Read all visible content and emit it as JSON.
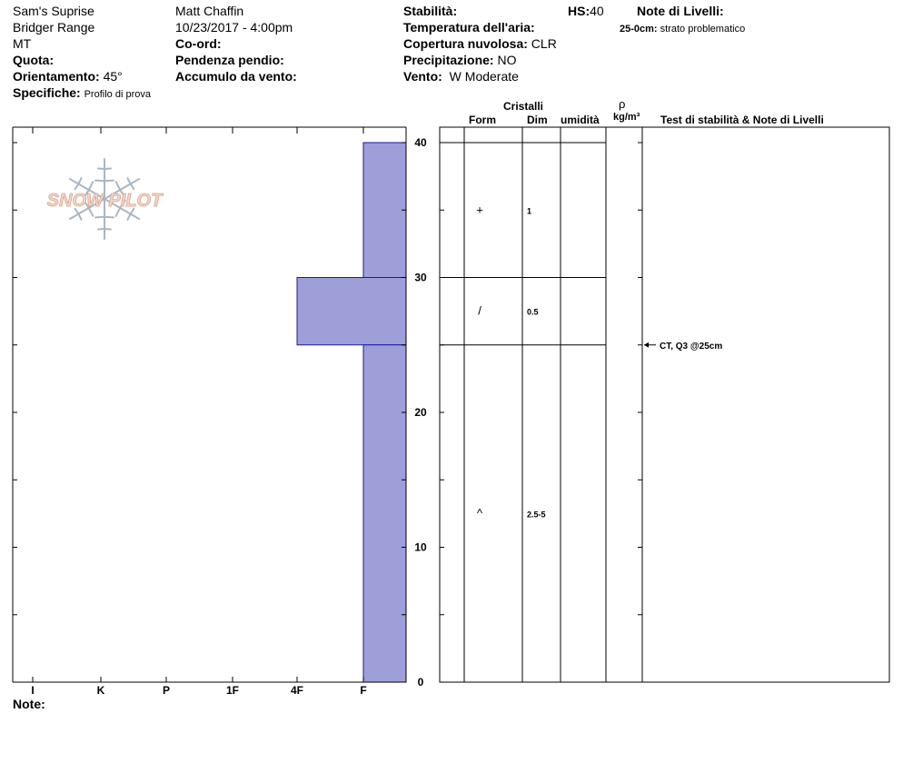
{
  "header": {
    "location": "Sam's Suprise",
    "range": "Bridger Range",
    "state": "MT",
    "elevation_label": "Quota:",
    "aspect_label": "Orientamento:",
    "aspect_value": "45°",
    "specifics_label": "Specifiche:",
    "specifics_value": "Profilo di prova",
    "observer": "Matt Chaffin",
    "datetime": "10/23/2017 - 4:00pm",
    "coord_label": "Co-ord:",
    "slope_label": "Pendenza pendio:",
    "wind_loading_label": "Accumulo da vento:",
    "stability_label": "Stabilità:",
    "air_temp_label": "Temperatura dell'aria:",
    "sky_label": "Copertura nuvolosa:",
    "sky_value": "CLR",
    "precip_label": "Precipitazione:",
    "precip_value": "NO",
    "wind_label": "Vento:",
    "wind_value": "W Moderate",
    "hs_label": "HS:",
    "hs_value": "40",
    "layer_notes_label": "Note di Livelli:",
    "layer_note_range": "25-0cm:",
    "layer_note_text": "strato problematico"
  },
  "columns": {
    "crystals": "Cristalli",
    "form": "Form",
    "size": "Dim",
    "moisture": "umidità",
    "rho": "ρ",
    "density_unit": "kg/m³",
    "tests": "Test di stabilità & Note di Livelli"
  },
  "notes_label": "Note:",
  "logo_text": "SNOW PILOT",
  "colors": {
    "bar_fill": "#9e9ed8",
    "bar_stroke": "#1a1aa0"
  },
  "chart_data": {
    "type": "bar",
    "title": "",
    "orientation": "horizontal",
    "ylim": [
      0,
      40
    ],
    "y_ticks": [
      0,
      10,
      20,
      30,
      40
    ],
    "hardness_scale": [
      "I",
      "K",
      "P",
      "1F",
      "4F",
      "F"
    ],
    "hardness_levels": [
      "F",
      "4F",
      "1F",
      "P",
      "K",
      "I"
    ],
    "layers": [
      {
        "top": 40,
        "bottom": 30,
        "hardness": "F",
        "form_symbol": "+",
        "size": "1"
      },
      {
        "top": 30,
        "bottom": 25,
        "hardness": "4F",
        "form_symbol": "/",
        "size": "0.5"
      },
      {
        "top": 25,
        "bottom": 0,
        "hardness": "F",
        "form_symbol": "^",
        "size": "2.5-5"
      }
    ],
    "stability_tests": [
      {
        "depth": 25,
        "label": "CT, Q3 @25cm"
      }
    ]
  }
}
